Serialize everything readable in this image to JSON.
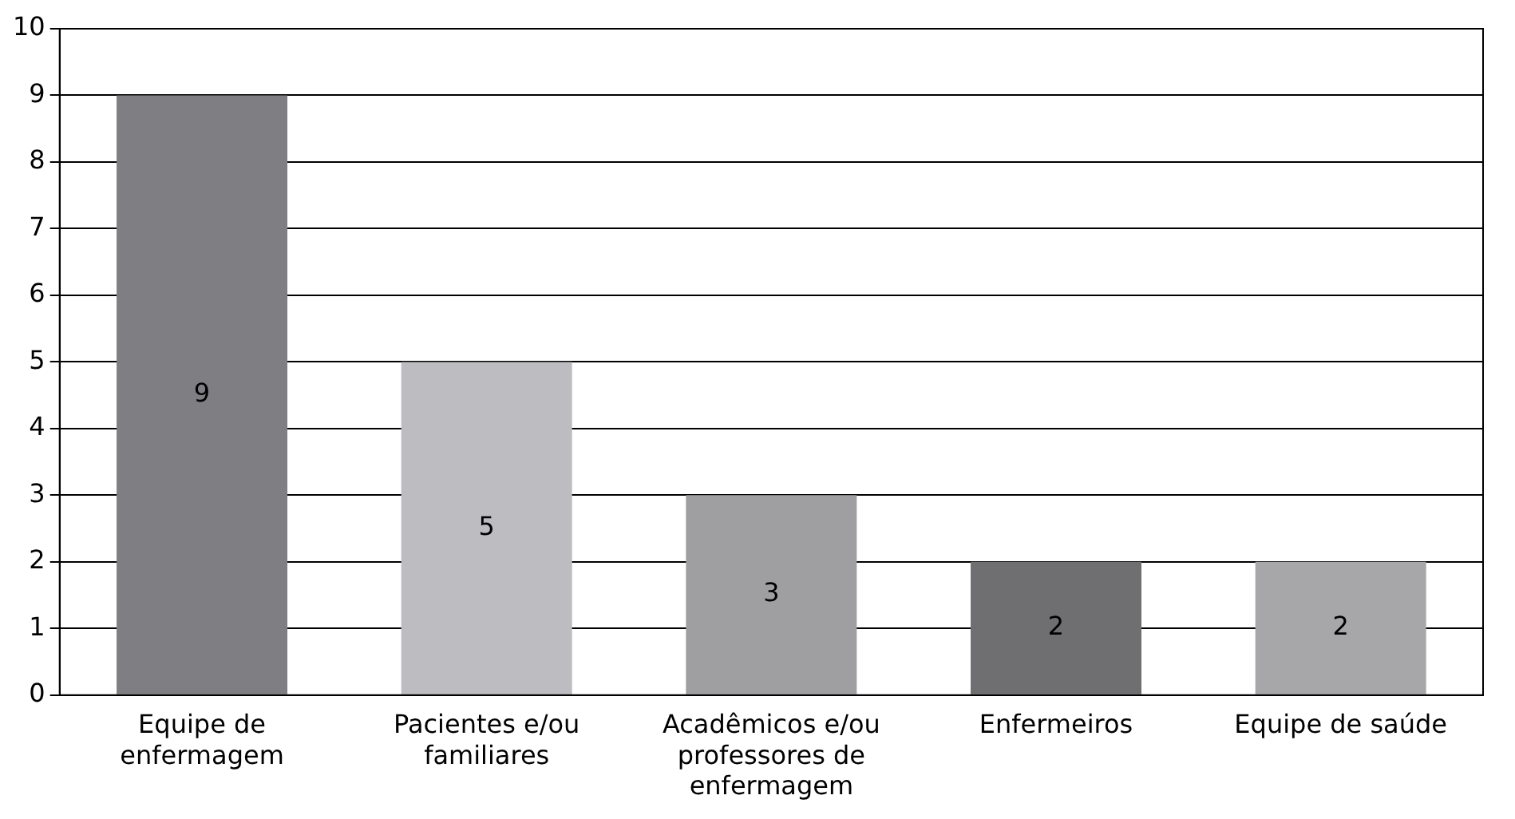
{
  "chart_data": {
    "type": "bar",
    "categories": [
      "Equipe de enfermagem",
      "Pacientes e/ou familiares",
      "Acadêmicos e/ou professores de enfermagem",
      "Enfermeiros",
      "Equipe de saúde"
    ],
    "values": [
      9,
      5,
      3,
      2,
      2
    ],
    "colors": [
      "#7f7f83",
      "#bdbdc1",
      "#9f9fa2",
      "#6f6f72",
      "#a7a7aa"
    ],
    "ylim": [
      0,
      10
    ],
    "yticks": [
      0,
      1,
      2,
      3,
      4,
      5,
      6,
      7,
      8,
      9,
      10
    ],
    "grid": "y",
    "data_labels": true,
    "legend": false
  }
}
